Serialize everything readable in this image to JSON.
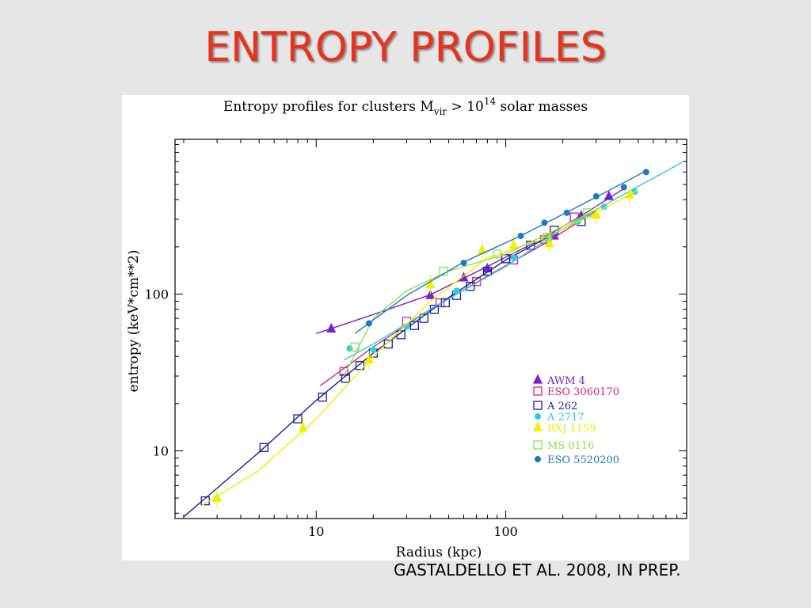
{
  "slide": {
    "title": "ENTROPY PROFILES",
    "caption": "GASTALDELLO ET AL.  2008, IN PREP."
  },
  "chart_data": {
    "type": "scatter",
    "title_parts": {
      "pre": "Entropy profiles for clusters M",
      "sub": "vir",
      "mid": " > 10",
      "sup": "14",
      "post": " solar masses"
    },
    "xlabel": "Radius (kpc)",
    "ylabel": "entropy (keV*cm**2)",
    "x_scale": "log",
    "y_scale": "log",
    "xlim": [
      1.8,
      900
    ],
    "ylim": [
      3.7,
      970
    ],
    "x_ticks": [
      {
        "value": 10,
        "label": "10"
      },
      {
        "value": 100,
        "label": "100"
      }
    ],
    "y_ticks": [
      {
        "value": 10,
        "label": "10"
      },
      {
        "value": 100,
        "label": "100"
      }
    ],
    "grid": false,
    "legend_placement": "bottom-right",
    "series": [
      {
        "name": "AWM 4",
        "color": "#7a1fd0",
        "marker": "triangle",
        "filled": true,
        "x": [
          12,
          40,
          60,
          80,
          180,
          250,
          350
        ],
        "y": [
          60,
          98,
          127,
          145,
          235,
          315,
          420
        ],
        "fit": [
          [
            10,
            56
          ],
          [
            20,
            74
          ],
          [
            40,
            99
          ],
          [
            80,
            150
          ],
          [
            150,
            220
          ],
          [
            250,
            315
          ],
          [
            420,
            470
          ]
        ]
      },
      {
        "name": "ESO 3060170",
        "color": "#e0207a",
        "marker": "square",
        "filled": false,
        "x": [
          14,
          30,
          45,
          70,
          110,
          160,
          230
        ],
        "y": [
          32,
          67,
          88,
          120,
          165,
          222,
          310
        ],
        "fit": [
          [
            10.5,
            26
          ],
          [
            20,
            46
          ],
          [
            40,
            80
          ],
          [
            80,
            130
          ],
          [
            160,
            210
          ],
          [
            300,
            340
          ]
        ]
      },
      {
        "name": "A 262",
        "color": "#1a1f9a",
        "marker": "square",
        "filled": false,
        "x": [
          2.6,
          5.3,
          8,
          10.8,
          14.3,
          17,
          20,
          24,
          28,
          33,
          37,
          42,
          48,
          55,
          65,
          80,
          100,
          135,
          180,
          250
        ],
        "y": [
          4.8,
          10.5,
          16,
          22,
          29,
          35,
          42,
          48,
          55,
          63,
          70,
          80,
          88,
          98,
          112,
          140,
          168,
          205,
          255,
          290
        ],
        "fit": [
          [
            2,
            3.8
          ],
          [
            5,
            9.8
          ],
          [
            10,
            21
          ],
          [
            20,
            42
          ],
          [
            50,
            95
          ],
          [
            100,
            165
          ],
          [
            200,
            260
          ],
          [
            300,
            330
          ]
        ]
      },
      {
        "name": "A 2717",
        "color": "#2ad0e0",
        "marker": "circle",
        "filled": true,
        "x": [
          15,
          20,
          30,
          55,
          110,
          170,
          240,
          330,
          480
        ],
        "y": [
          45,
          44,
          62,
          105,
          170,
          225,
          290,
          360,
          450
        ],
        "fit": [
          [
            14,
            38
          ],
          [
            20,
            48
          ],
          [
            40,
            80
          ],
          [
            100,
            150
          ],
          [
            200,
            260
          ],
          [
            400,
            420
          ],
          [
            850,
            690
          ]
        ]
      },
      {
        "name": "RXJ 1159",
        "color": "#f0f000",
        "marker": "triangle",
        "filled": true,
        "x": [
          3,
          8.5,
          19,
          40,
          75,
          110,
          170,
          300,
          450
        ],
        "y": [
          5,
          14,
          38,
          115,
          190,
          205,
          210,
          320,
          430
        ],
        "fit": [
          [
            2.5,
            4.5
          ],
          [
            5,
            7.5
          ],
          [
            10,
            16
          ],
          [
            20,
            40
          ],
          [
            40,
            90
          ],
          [
            80,
            170
          ],
          [
            150,
            220
          ],
          [
            300,
            330
          ],
          [
            500,
            460
          ]
        ]
      },
      {
        "name": "MS 0116",
        "color": "#90e050",
        "marker": "square",
        "filled": false,
        "x": [
          16,
          47,
          90,
          165,
          270
        ],
        "y": [
          46,
          140,
          180,
          230,
          330
        ],
        "fit": [
          [
            14,
            30
          ],
          [
            20,
            70
          ],
          [
            30,
            105
          ],
          [
            50,
            140
          ],
          [
            100,
            180
          ],
          [
            200,
            270
          ],
          [
            320,
            360
          ]
        ]
      },
      {
        "name": "ESO 5520200",
        "color": "#1a78c8",
        "marker": "circle",
        "filled": true,
        "x": [
          19,
          60,
          120,
          160,
          210,
          300,
          420,
          550
        ],
        "y": [
          65,
          158,
          235,
          285,
          330,
          420,
          480,
          600
        ],
        "fit": [
          [
            16,
            56
          ],
          [
            30,
            98
          ],
          [
            60,
            160
          ],
          [
            120,
            235
          ],
          [
            250,
            370
          ],
          [
            550,
            610
          ]
        ]
      }
    ]
  }
}
